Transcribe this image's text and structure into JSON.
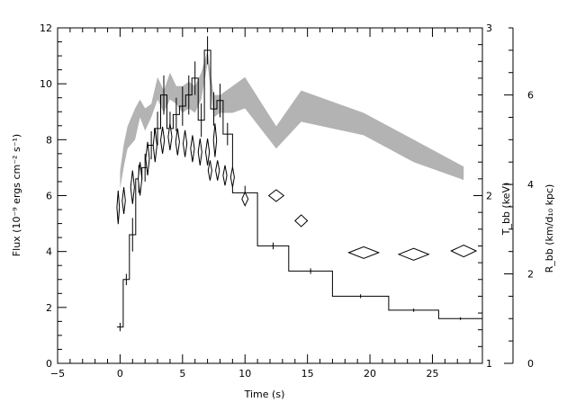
{
  "chart_data": {
    "type": "line",
    "xlabel": "Time (s)",
    "ylabel_left": "Flux (10⁻⁹ ergs cm⁻² s⁻¹)",
    "ylabel_mid": "T_bb (keV)",
    "ylabel_right": "R_bb (km/d₁₀ kpc)",
    "xlim": [
      -5,
      29
    ],
    "flux_ylim": [
      0,
      12
    ],
    "temp_ylim": [
      1,
      3
    ],
    "radius_ylim": [
      0,
      7.5
    ],
    "x_ticks": [
      -5,
      0,
      5,
      10,
      15,
      20,
      25
    ],
    "flux_ticks": [
      0,
      2,
      4,
      6,
      8,
      10,
      12
    ],
    "temp_ticks": [
      1,
      2,
      3
    ],
    "radius_ticks": [
      0,
      2,
      4,
      6
    ],
    "flux_series": {
      "name": "flux histogram",
      "bins": [
        [
          -0.25,
          0.25,
          1.3
        ],
        [
          0.25,
          0.75,
          3.0
        ],
        [
          0.75,
          1.25,
          4.6
        ],
        [
          1.25,
          1.75,
          6.6
        ],
        [
          1.75,
          2.25,
          7.0
        ],
        [
          2.25,
          2.75,
          7.8
        ],
        [
          2.75,
          3.25,
          8.4
        ],
        [
          3.25,
          3.75,
          9.6
        ],
        [
          3.75,
          4.25,
          8.4
        ],
        [
          4.25,
          4.75,
          8.9
        ],
        [
          4.75,
          5.25,
          9.2
        ],
        [
          5.25,
          5.75,
          9.6
        ],
        [
          5.75,
          6.25,
          10.2
        ],
        [
          6.25,
          6.75,
          8.7
        ],
        [
          6.75,
          7.25,
          11.2
        ],
        [
          7.25,
          7.75,
          9.1
        ],
        [
          7.75,
          8.25,
          9.4
        ],
        [
          8.25,
          9.0,
          8.2
        ],
        [
          9.0,
          11.0,
          6.1
        ],
        [
          11.0,
          13.5,
          4.2
        ],
        [
          13.5,
          17.0,
          3.3
        ],
        [
          17.0,
          21.5,
          2.4
        ],
        [
          21.5,
          25.5,
          1.9
        ],
        [
          25.5,
          29.0,
          1.6
        ]
      ],
      "error_bars": [
        [
          0.0,
          1.3,
          0.15
        ],
        [
          0.5,
          3.0,
          0.2
        ],
        [
          1.0,
          4.6,
          0.6
        ],
        [
          1.5,
          6.6,
          0.5
        ],
        [
          2.0,
          7.0,
          0.5
        ],
        [
          2.5,
          7.8,
          0.5
        ],
        [
          3.0,
          8.4,
          0.6
        ],
        [
          3.5,
          9.6,
          0.7
        ],
        [
          4.0,
          8.4,
          0.6
        ],
        [
          4.5,
          8.9,
          0.6
        ],
        [
          5.0,
          9.2,
          0.7
        ],
        [
          5.5,
          9.6,
          0.7
        ],
        [
          6.0,
          10.2,
          0.6
        ],
        [
          6.5,
          8.7,
          0.6
        ],
        [
          7.0,
          11.2,
          0.5
        ],
        [
          7.5,
          9.1,
          0.6
        ],
        [
          8.0,
          9.4,
          0.6
        ],
        [
          8.6,
          8.2,
          0.4
        ],
        [
          10.0,
          6.1,
          0.25
        ],
        [
          12.25,
          4.2,
          0.12
        ],
        [
          15.25,
          3.3,
          0.1
        ],
        [
          19.25,
          2.4,
          0.07
        ],
        [
          23.5,
          1.9,
          0.06
        ],
        [
          27.25,
          1.6,
          0.05
        ]
      ]
    },
    "temperature_series": {
      "name": "temperature diamonds",
      "points": [
        [
          -0.15,
          1.93,
          0.2,
          0.1
        ],
        [
          0.3,
          1.97,
          0.25,
          0.08
        ],
        [
          1.0,
          2.05,
          0.3,
          0.1
        ],
        [
          1.6,
          2.1,
          0.3,
          0.1
        ],
        [
          2.2,
          2.22,
          0.3,
          0.1
        ],
        [
          2.8,
          2.3,
          0.3,
          0.1
        ],
        [
          3.4,
          2.33,
          0.3,
          0.08
        ],
        [
          4.0,
          2.35,
          0.3,
          0.08
        ],
        [
          4.6,
          2.32,
          0.3,
          0.08
        ],
        [
          5.2,
          2.31,
          0.3,
          0.08
        ],
        [
          5.8,
          2.28,
          0.3,
          0.08
        ],
        [
          6.4,
          2.26,
          0.3,
          0.08
        ],
        [
          7.0,
          2.26,
          0.3,
          0.08
        ],
        [
          7.6,
          2.33,
          0.25,
          0.1
        ],
        [
          7.2,
          2.15,
          0.3,
          0.06
        ],
        [
          7.8,
          2.15,
          0.3,
          0.06
        ],
        [
          8.4,
          2.12,
          0.3,
          0.06
        ],
        [
          9.0,
          2.11,
          0.3,
          0.06
        ],
        [
          10.0,
          1.98,
          0.5,
          0.04
        ],
        [
          12.5,
          2.0,
          1.2,
          0.035
        ],
        [
          14.5,
          1.85,
          1.0,
          0.035
        ],
        [
          19.5,
          1.66,
          2.4,
          0.035
        ],
        [
          23.5,
          1.65,
          2.4,
          0.035
        ],
        [
          27.5,
          1.67,
          2.0,
          0.035
        ]
      ]
    },
    "radius_band": {
      "name": "radius band",
      "x": [
        0.0,
        0.3,
        0.6,
        1.2,
        1.6,
        2.0,
        2.5,
        3.0,
        3.5,
        4.0,
        4.5,
        5.0,
        5.5,
        6.0,
        6.5,
        7.0,
        7.5,
        8.0,
        9.0,
        10.0,
        12.5,
        14.5,
        19.5,
        23.5,
        27.5
      ],
      "lower": [
        3.9,
        4.4,
        4.8,
        5.0,
        5.5,
        5.2,
        5.5,
        5.9,
        5.6,
        5.9,
        5.8,
        5.6,
        5.7,
        5.6,
        5.9,
        6.7,
        5.5,
        5.6,
        5.6,
        5.7,
        4.8,
        5.4,
        5.1,
        4.5,
        4.1
      ],
      "upper": [
        4.3,
        4.9,
        5.3,
        5.7,
        5.9,
        5.7,
        5.8,
        6.4,
        6.1,
        6.5,
        6.2,
        6.2,
        6.3,
        6.2,
        6.5,
        7.0,
        6.0,
        6.0,
        6.2,
        6.4,
        5.3,
        6.1,
        5.6,
        5.0,
        4.4
      ]
    }
  }
}
